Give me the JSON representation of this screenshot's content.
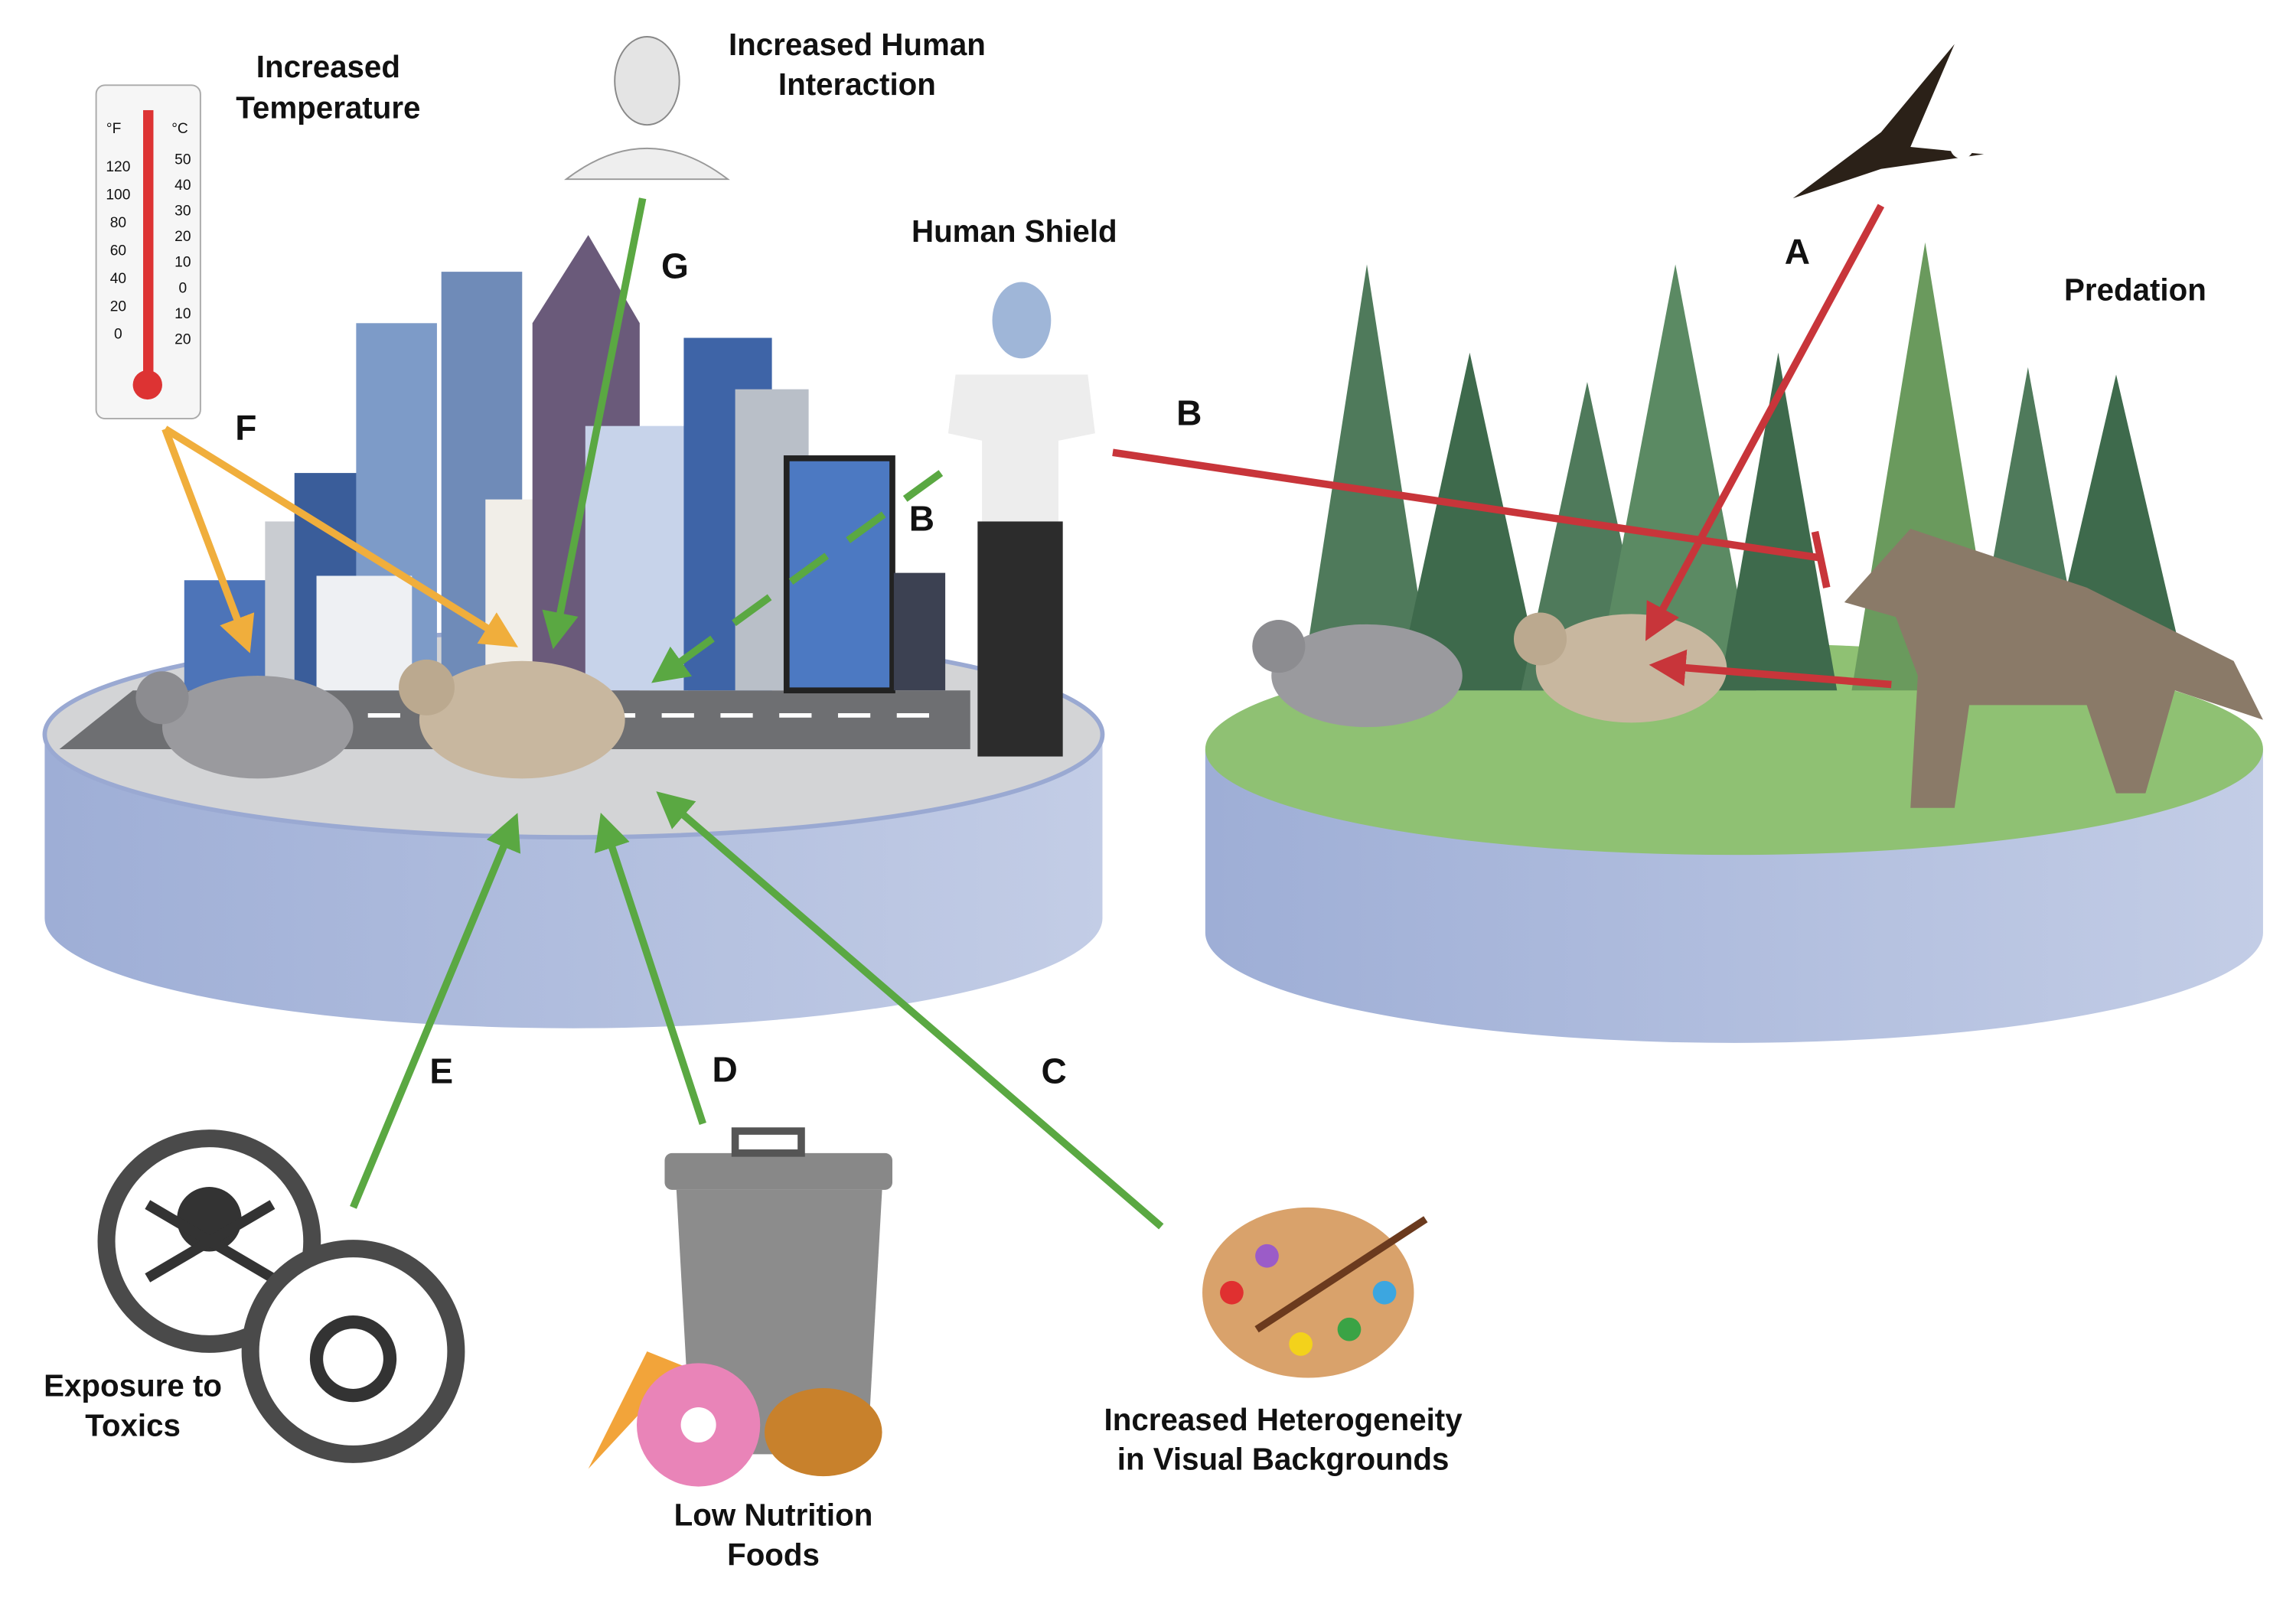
{
  "factors": [
    {
      "lines": [
        "Increased",
        "Temperature"
      ]
    },
    {
      "lines": [
        "Increased Human",
        "Interaction"
      ]
    },
    {
      "lines": [
        "Human Shield"
      ]
    },
    {
      "lines": [
        "Predation"
      ]
    },
    {
      "lines": [
        "Exposure to",
        "Toxics"
      ]
    },
    {
      "lines": [
        "Low Nutrition",
        "Foods"
      ]
    },
    {
      "lines": [
        "Increased Heterogeneity",
        "in Visual Backgrounds"
      ]
    }
  ],
  "arrow_labels": [
    "A",
    "B",
    "B",
    "C",
    "D",
    "E",
    "F",
    "G"
  ],
  "thermometer": {
    "units": [
      "°F",
      "°C"
    ],
    "f_labels": [
      "120",
      "100",
      "80",
      "60",
      "40",
      "20",
      "0"
    ],
    "c_labels": [
      "50",
      "40",
      "30",
      "20",
      "10",
      "0",
      "10",
      "20"
    ]
  }
}
